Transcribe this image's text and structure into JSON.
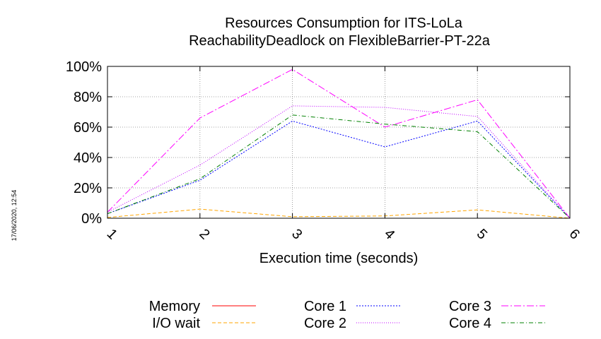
{
  "stamp": "17/06/2020, 12:54",
  "chart_data": {
    "type": "line",
    "title": [
      "Resources Consumption for ITS-LoLa",
      "ReachabilityDeadlock on FlexibleBarrier-PT-22a"
    ],
    "xlabel": "Execution time (seconds)",
    "ylabel": "",
    "x": [
      1,
      2,
      3,
      4,
      5,
      6
    ],
    "xlim": [
      1,
      6
    ],
    "ylim": [
      0,
      100
    ],
    "y_unit": "%",
    "x_ticks": [
      1,
      2,
      3,
      4,
      5,
      6
    ],
    "y_ticks": [
      0,
      20,
      40,
      60,
      80,
      100
    ],
    "grid": true,
    "legend_position": "bottom",
    "series": [
      {
        "name": "Memory",
        "color": "#ff0000",
        "dash": "",
        "values": [
          null,
          null,
          null,
          null,
          null,
          null
        ]
      },
      {
        "name": "I/O wait",
        "color": "#ffa500",
        "dash": "5,3",
        "values": [
          0.5,
          6,
          1,
          1.5,
          5.5,
          0
        ]
      },
      {
        "name": "Core 1",
        "color": "#0000ff",
        "dash": "2,2",
        "values": [
          3,
          25,
          64,
          47,
          64,
          0
        ]
      },
      {
        "name": "Core 2",
        "color": "#c000ff",
        "dash": "1,2",
        "values": [
          4,
          35,
          74,
          73,
          67,
          0
        ]
      },
      {
        "name": "Core 3",
        "color": "#ff00ff",
        "dash": "10,3,2,3",
        "values": [
          4,
          66,
          98,
          60,
          78,
          0
        ]
      },
      {
        "name": "Core 4",
        "color": "#008000",
        "dash": "6,3,1,3",
        "values": [
          3,
          26,
          68,
          62,
          57,
          0
        ]
      }
    ]
  }
}
